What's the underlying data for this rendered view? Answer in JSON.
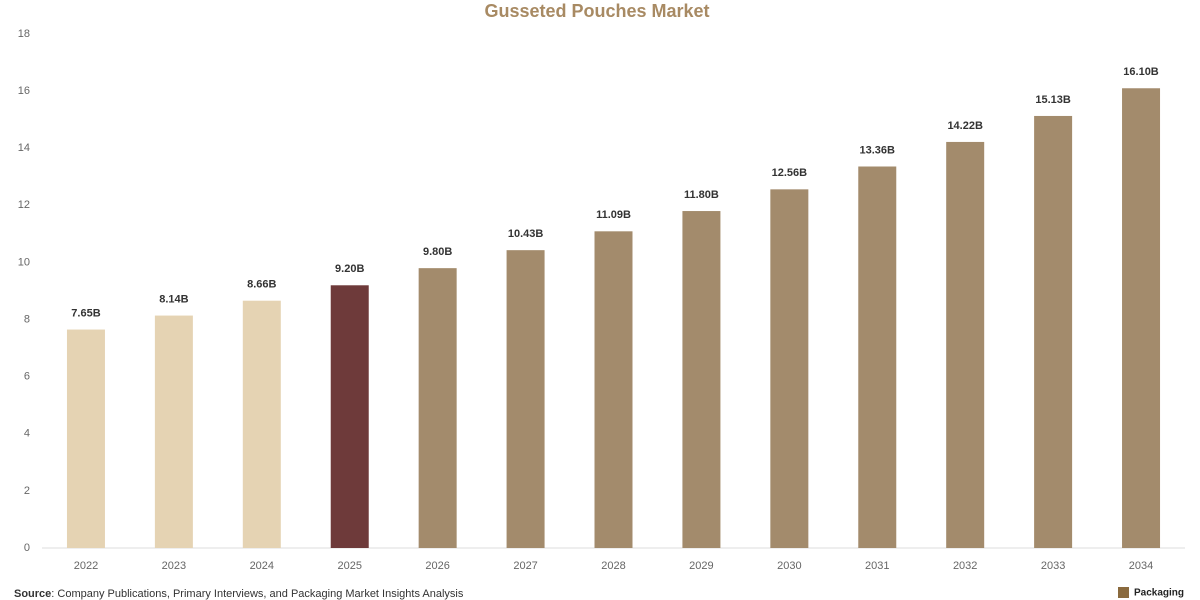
{
  "chart_data": {
    "type": "bar",
    "title": "Gusseted Pouches Market",
    "categories": [
      "2022",
      "2023",
      "2024",
      "2025",
      "2026",
      "2027",
      "2028",
      "2029",
      "2030",
      "2031",
      "2032",
      "2033",
      "2034"
    ],
    "values": [
      7.65,
      8.14,
      8.66,
      9.2,
      9.8,
      10.43,
      11.09,
      11.8,
      12.56,
      13.36,
      14.22,
      15.13,
      16.1
    ],
    "value_labels": [
      "7.65B",
      "8.14B",
      "8.66B",
      "9.20B",
      "9.80B",
      "10.43B",
      "11.09B",
      "11.80B",
      "12.56B",
      "13.36B",
      "14.22B",
      "15.13B",
      "16.10B"
    ],
    "colors": [
      "#e5d3b3",
      "#e5d3b3",
      "#e5d3b3",
      "#6e3a3a",
      "#a38b6c",
      "#a38b6c",
      "#a38b6c",
      "#a38b6c",
      "#a38b6c",
      "#a38b6c",
      "#a38b6c",
      "#a38b6c",
      "#a38b6c"
    ],
    "ylim": [
      0,
      18
    ],
    "yticks": [
      0,
      2,
      4,
      6,
      8,
      10,
      12,
      14,
      16,
      18
    ],
    "grid": false,
    "source_label": "Source",
    "source": ": Company Publications, Primary Interviews, and Packaging Market Insights Analysis",
    "logo": "Packaging"
  }
}
